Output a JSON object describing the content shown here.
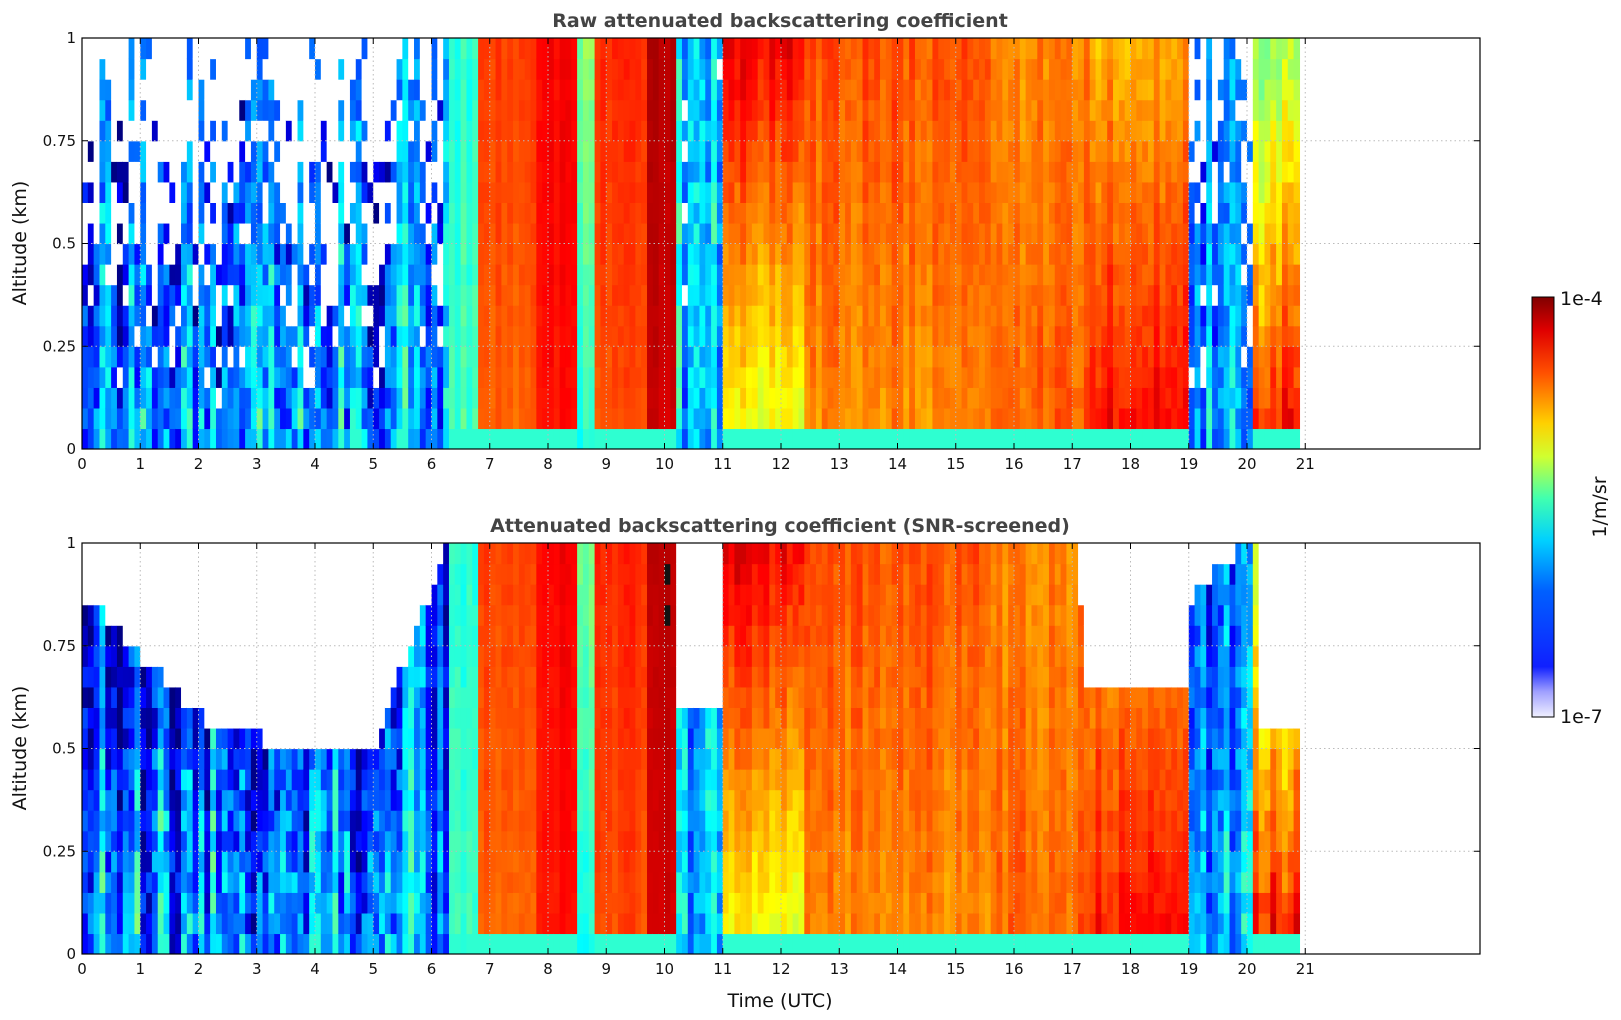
{
  "chart_data": [
    {
      "type": "heatmap",
      "title": "Raw attenuated backscattering coefficient",
      "xlabel": "",
      "ylabel": "Altitude (km)",
      "xlim": [
        0,
        24
      ],
      "ylim": [
        0,
        1
      ],
      "x_ticks": [
        "0",
        "1",
        "2",
        "3",
        "4",
        "5",
        "6",
        "7",
        "8",
        "9",
        "10",
        "11",
        "12",
        "13",
        "14",
        "15",
        "16",
        "17",
        "18",
        "19",
        "20",
        "21"
      ],
      "y_ticks": [
        "0",
        "0.25",
        "0.5",
        "0.75",
        "1"
      ],
      "grid": true,
      "data_end_time": 20.85,
      "colorscale": "jet",
      "color_scale_type": "log",
      "color_range": [
        "1e-7",
        "1e-4"
      ],
      "profiles": [
        {
          "t": [
            0,
            5.4
          ],
          "level_surface": 0.28,
          "level_top": 0.08,
          "noise": 0.55
        },
        {
          "t": [
            5.4,
            5.6
          ],
          "level_surface": 0.38,
          "level_top": 0.28,
          "noise": 0.3
        },
        {
          "t": [
            5.6,
            6.25
          ],
          "level_surface": 0.26,
          "level_top": 0.18,
          "noise": 0.4
        },
        {
          "t": [
            6.25,
            6.7
          ],
          "level_surface": 0.45,
          "level_top": 0.42,
          "noise": 0.1
        },
        {
          "t": [
            6.7,
            7.7
          ],
          "level_surface": 0.78,
          "level_top": 0.82,
          "noise": 0.06
        },
        {
          "t": [
            7.7,
            8.45
          ],
          "level_surface": 0.86,
          "level_top": 0.88,
          "noise": 0.05
        },
        {
          "t": [
            8.45,
            8.75
          ],
          "level_surface": 0.4,
          "level_top": 0.5,
          "noise": 0.1
        },
        {
          "t": [
            8.75,
            9.6
          ],
          "level_surface": 0.8,
          "level_top": 0.84,
          "noise": 0.06
        },
        {
          "t": [
            9.6,
            10.1
          ],
          "level_surface": 0.92,
          "level_top": 0.95,
          "noise": 0.04
        },
        {
          "t": [
            10.1,
            10.95
          ],
          "level_surface": 0.3,
          "level_top": 0.3,
          "noise": 0.35
        },
        {
          "t": [
            10.95,
            12.3
          ],
          "level_surface": 0.6,
          "level_top": 0.9,
          "noise": 0.12
        },
        {
          "t": [
            12.3,
            15.5
          ],
          "level_surface": 0.74,
          "level_top": 0.8,
          "noise": 0.1
        },
        {
          "t": [
            15.5,
            17.2
          ],
          "level_surface": 0.78,
          "level_top": 0.74,
          "noise": 0.1
        },
        {
          "t": [
            17.2,
            19.0
          ],
          "level_surface": 0.87,
          "level_top": 0.7,
          "noise": 0.12
        },
        {
          "t": [
            19.0,
            20.1
          ],
          "level_surface": 0.3,
          "level_top": 0.2,
          "noise": 0.35
        },
        {
          "t": [
            20.1,
            20.85
          ],
          "level_surface": 0.85,
          "level_top": 0.5,
          "noise": 0.2
        }
      ]
    },
    {
      "type": "heatmap",
      "title": "Attenuated backscattering coefficient (SNR-screened)",
      "xlabel": "Time (UTC)",
      "ylabel": "Altitude (km)",
      "xlim": [
        0,
        24
      ],
      "ylim": [
        0,
        1
      ],
      "x_ticks": [
        "0",
        "1",
        "2",
        "3",
        "4",
        "5",
        "6",
        "7",
        "8",
        "9",
        "10",
        "11",
        "12",
        "13",
        "14",
        "15",
        "16",
        "17",
        "18",
        "19",
        "20",
        "21"
      ],
      "y_ticks": [
        "0",
        "0.25",
        "0.5",
        "0.75",
        "1"
      ],
      "grid": true,
      "data_end_time": 20.85,
      "colorscale": "jet",
      "color_scale_type": "log",
      "color_range": [
        "1e-7",
        "1e-4"
      ],
      "screened_ceiling_km": [
        {
          "t": 0,
          "h": 0.85
        },
        {
          "t": 1,
          "h": 0.7
        },
        {
          "t": 2,
          "h": 0.55
        },
        {
          "t": 3,
          "h": 0.5
        },
        {
          "t": 4,
          "h": 0.45
        },
        {
          "t": 5,
          "h": 0.5
        },
        {
          "t": 6.3,
          "h": 1.0
        },
        {
          "t": 10.1,
          "h": 1.0
        },
        {
          "t": 10.2,
          "h": 0.55
        },
        {
          "t": 10.95,
          "h": 0.55
        },
        {
          "t": 11.0,
          "h": 1.0
        },
        {
          "t": 17.0,
          "h": 1.0
        },
        {
          "t": 17.2,
          "h": 0.6
        },
        {
          "t": 18.9,
          "h": 0.6
        },
        {
          "t": 19.0,
          "h": 0.85
        },
        {
          "t": 20.1,
          "h": 1.0
        },
        {
          "t": 20.2,
          "h": 0.55
        },
        {
          "t": 20.85,
          "h": 0.5
        }
      ]
    }
  ],
  "colorbar": {
    "label": "1/m/sr",
    "max_label": "1e-4",
    "min_label": "1e-7"
  }
}
